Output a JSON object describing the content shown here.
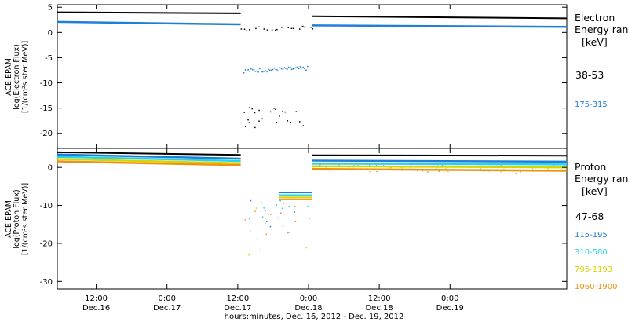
{
  "colors": {
    "black": "#000000",
    "blue": "#1f7fd6",
    "cyan": "#27d3e8",
    "yellow": "#d9d400",
    "orange": "#f09010"
  },
  "xaxis": {
    "title": "hours:minutes, Dec. 16, 2012 - Dec. 19, 2012",
    "ticks": [
      {
        "time": "12:00",
        "date": "Dec.16"
      },
      {
        "time": "0:00",
        "date": "Dec.17"
      },
      {
        "time": "12:00",
        "date": "Dec.17"
      },
      {
        "time": "0:00",
        "date": "Dec.18"
      },
      {
        "time": "12:00",
        "date": "Dec.18"
      },
      {
        "time": "0:00",
        "date": "Dec.19"
      }
    ]
  },
  "chart_data": [
    {
      "type": "scatter",
      "panel": "electron",
      "ylabel_lines": [
        "ACE EPAM",
        "log(Electron Flux)",
        "[1/(cm²s ster MeV)]"
      ],
      "ylim": [
        -23,
        5.5
      ],
      "yticks": [
        5,
        0,
        -5,
        -10,
        -15,
        -20
      ],
      "legend_title": [
        "Electron",
        "Energy ranges",
        "[keV]"
      ],
      "series": [
        {
          "name": "38-53",
          "color": "#000000",
          "segments": [
            {
              "x": [
                0.0,
                0.36
              ],
              "y": [
                4.0,
                3.8
              ]
            },
            {
              "x": [
                0.5,
                1.0
              ],
              "y": [
                3.2,
                2.8
              ]
            }
          ],
          "gap_scatter": {
            "x": [
              0.36,
              0.5
            ],
            "y": [
              0.8,
              1.0
            ],
            "sparse_low": [
              -15.5,
              -18,
              -17,
              -15
            ]
          }
        },
        {
          "name": "175-315",
          "color": "#1f7fd6",
          "segments": [
            {
              "x": [
                0.0,
                0.36
              ],
              "y": [
                2.1,
                1.6
              ]
            },
            {
              "x": [
                0.5,
                1.0
              ],
              "y": [
                1.4,
                1.1
              ]
            }
          ],
          "gap_scatter": {
            "x": [
              0.365,
              0.49
            ],
            "y": [
              -7.5,
              -7.0
            ]
          }
        }
      ]
    },
    {
      "type": "scatter",
      "panel": "proton",
      "ylabel_lines": [
        "ACE EPAM",
        "log(Proton Flux)",
        "[1/(cm²s ster MeV)]"
      ],
      "ylim": [
        -32,
        5
      ],
      "yticks": [
        0,
        -10,
        -20,
        -30
      ],
      "legend_title": [
        "Proton",
        "Energy ranges",
        "[keV]"
      ],
      "series": [
        {
          "name": "47-68",
          "color": "#000000",
          "segments": [
            {
              "x": [
                0.0,
                0.36
              ],
              "y": [
                4.0,
                3.3
              ]
            },
            {
              "x": [
                0.5,
                1.0
              ],
              "y": [
                3.2,
                3.1
              ]
            }
          ]
        },
        {
          "name": "115-195",
          "color": "#1f7fd6",
          "segments": [
            {
              "x": [
                0.0,
                0.36
              ],
              "y": [
                3.4,
                2.3
              ]
            },
            {
              "x": [
                0.5,
                1.0
              ],
              "y": [
                1.8,
                1.5
              ]
            }
          ],
          "gap_y": -6.6
        },
        {
          "name": "310-580",
          "color": "#27d3e8",
          "segments": [
            {
              "x": [
                0.0,
                0.36
              ],
              "y": [
                2.8,
                1.7
              ]
            },
            {
              "x": [
                0.5,
                1.0
              ],
              "y": [
                1.0,
                0.8
              ]
            }
          ],
          "gap_y": -7.3
        },
        {
          "name": "795-1193",
          "color": "#d9d400",
          "segments": [
            {
              "x": [
                0.0,
                0.36
              ],
              "y": [
                2.2,
                1.1
              ]
            },
            {
              "x": [
                0.5,
                1.0
              ],
              "y": [
                0.3,
                0.0
              ]
            }
          ],
          "gap_y": -7.9
        },
        {
          "name": "1060-1900",
          "color": "#f09010",
          "segments": [
            {
              "x": [
                0.0,
                0.36
              ],
              "y": [
                1.6,
                0.6
              ]
            },
            {
              "x": [
                0.5,
                1.0
              ],
              "y": [
                -0.4,
                -0.9
              ]
            }
          ],
          "gap_y": -8.4
        }
      ]
    }
  ]
}
